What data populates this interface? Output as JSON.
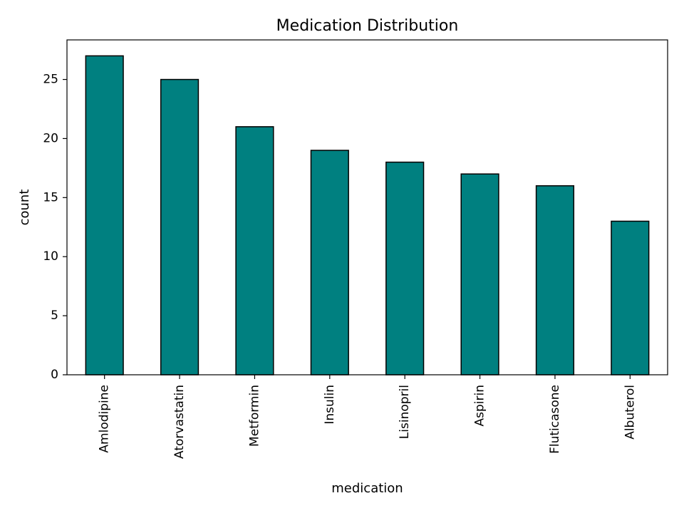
{
  "chart_data": {
    "type": "bar",
    "title": "Medication Distribution",
    "xlabel": "medication",
    "ylabel": "count",
    "categories": [
      "Amlodipine",
      "Atorvastatin",
      "Metformin",
      "Insulin",
      "Lisinopril",
      "Aspirin",
      "Fluticasone",
      "Albuterol"
    ],
    "values": [
      27,
      25,
      21,
      19,
      18,
      17,
      16,
      13
    ],
    "ylim": [
      0,
      28.35
    ],
    "yticks": [
      0,
      5,
      10,
      15,
      20,
      25
    ],
    "grid": false,
    "bar_color": "#008080",
    "edge_color": "#000000"
  }
}
